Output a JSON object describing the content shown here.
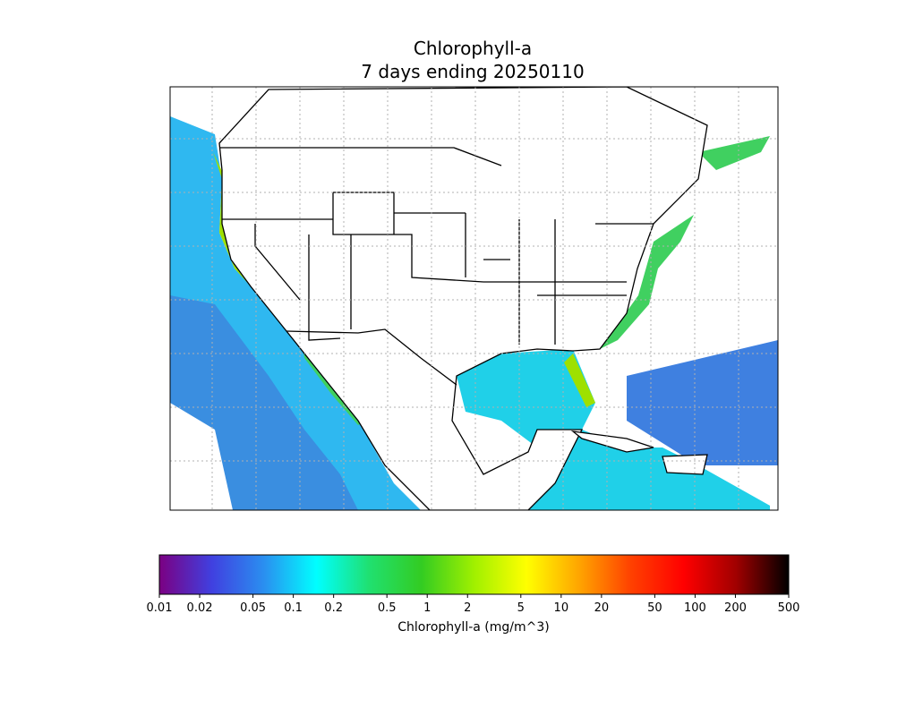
{
  "title": "Chlorophyll-a",
  "subtitle": "7 days ending 20250110",
  "colorbar": {
    "label": "Chlorophyll-a (mg/m^3)",
    "lim": [
      0.01,
      500
    ],
    "log": true,
    "ticks": [
      0.01,
      0.02,
      0.05,
      0.1,
      0.2,
      0.5,
      1,
      2,
      5,
      10,
      20,
      50,
      100,
      200,
      500
    ],
    "colors": [
      "#7b0082",
      "#4040e0",
      "#2a8ff0",
      "#00ffff",
      "#20e070",
      "#33cc22",
      "#a0f000",
      "#ffff00",
      "#ffa500",
      "#ff4000",
      "#ff0000",
      "#a00000",
      "#000000"
    ]
  }
}
